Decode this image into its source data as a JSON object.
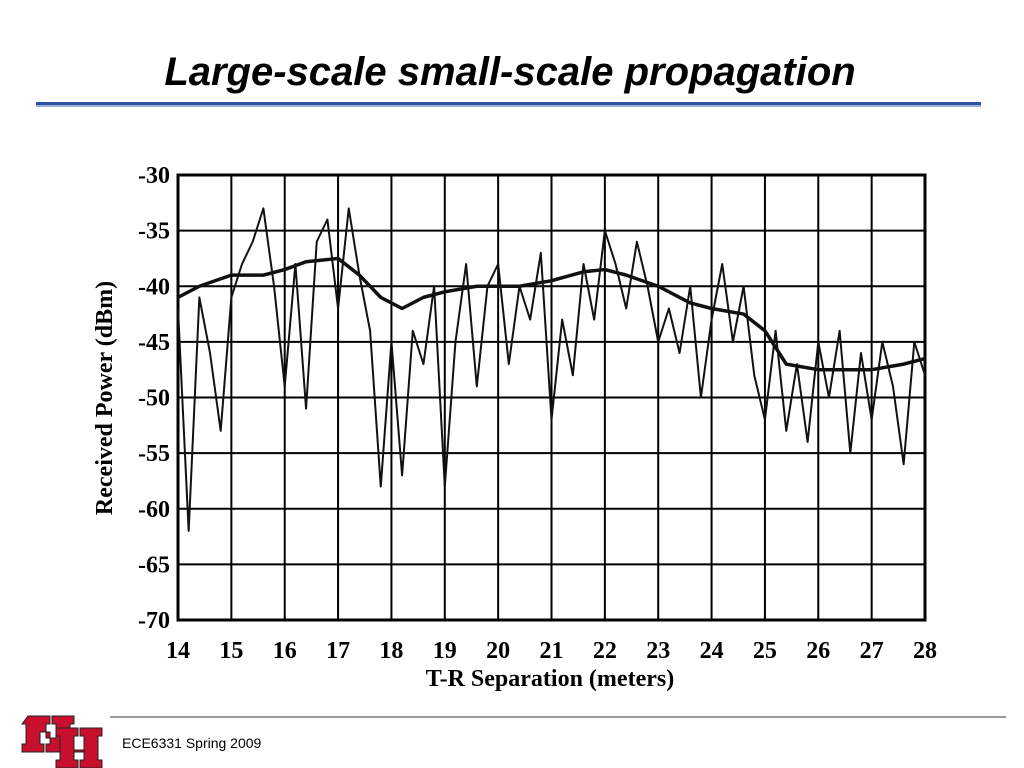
{
  "header": {
    "title": "Large-scale small-scale propagation"
  },
  "footer": {
    "text": "ECE6331 Spring 2009"
  },
  "chart_data": {
    "type": "line",
    "xlabel": "T-R Separation (meters)",
    "ylabel": "Received Power (dBm)",
    "xlim": [
      14,
      28
    ],
    "ylim": [
      -70,
      -30
    ],
    "xticks": [
      14,
      15,
      16,
      17,
      18,
      19,
      20,
      21,
      22,
      23,
      24,
      25,
      26,
      27,
      28
    ],
    "yticks": [
      -30,
      -35,
      -40,
      -45,
      -50,
      -55,
      -60,
      -65,
      -70
    ],
    "grid": true,
    "series": [
      {
        "color": "#111111",
        "x": [
          14.0,
          14.2,
          14.4,
          14.6,
          14.8,
          15.0,
          15.2,
          15.4,
          15.6,
          15.8,
          16.0,
          16.2,
          16.4,
          16.6,
          16.8,
          17.0,
          17.2,
          17.4,
          17.6,
          17.8,
          18.0,
          18.2,
          18.4,
          18.6,
          18.8,
          19.0,
          19.2,
          19.4,
          19.6,
          19.8,
          20.0,
          20.2,
          20.4,
          20.6,
          20.8,
          21.0,
          21.2,
          21.4,
          21.6,
          21.8,
          22.0,
          22.2,
          22.4,
          22.6,
          22.8,
          23.0,
          23.2,
          23.4,
          23.6,
          23.8,
          24.0,
          24.2,
          24.4,
          24.6,
          24.8,
          25.0,
          25.2,
          25.4,
          25.6,
          25.8,
          26.0,
          26.2,
          26.4,
          26.6,
          26.8,
          27.0,
          27.2,
          27.4,
          27.6,
          27.8,
          28.0
        ],
        "values": [
          -42,
          -62,
          -41,
          -46,
          -53,
          -41,
          -38,
          -36,
          -33,
          -40,
          -49,
          -38,
          -51,
          -36,
          -34,
          -42,
          -33,
          -39,
          -44,
          -58,
          -45,
          -57,
          -44,
          -47,
          -40,
          -58,
          -45,
          -38,
          -49,
          -40,
          -38,
          -47,
          -40,
          -43,
          -37,
          -52,
          -43,
          -48,
          -38,
          -43,
          -35,
          -38,
          -42,
          -36,
          -40,
          -45,
          -42,
          -46,
          -40,
          -50,
          -43,
          -38,
          -45,
          -40,
          -48,
          -52,
          -44,
          -53,
          -47,
          -54,
          -45,
          -50,
          -44,
          -55,
          -46,
          -52,
          -45,
          -49,
          -56,
          -45,
          -48
        ]
      },
      {
        "color": "#111111",
        "x": [
          14.0,
          14.4,
          15.0,
          15.6,
          16.0,
          16.4,
          17.0,
          17.4,
          17.8,
          18.2,
          18.6,
          19.0,
          19.6,
          20.4,
          21.0,
          21.6,
          22.0,
          22.4,
          23.0,
          23.6,
          24.0,
          24.6,
          25.0,
          25.4,
          26.0,
          27.0,
          27.6,
          28.0
        ],
        "values": [
          -41,
          -40,
          -39,
          -39,
          -38.5,
          -37.8,
          -37.5,
          -39,
          -41,
          -42,
          -41,
          -40.5,
          -40,
          -40,
          -39.5,
          -38.7,
          -38.5,
          -39,
          -40,
          -41.5,
          -42,
          -42.5,
          -44,
          -47,
          -47.5,
          -47.5,
          -47,
          -46.5
        ]
      }
    ]
  }
}
